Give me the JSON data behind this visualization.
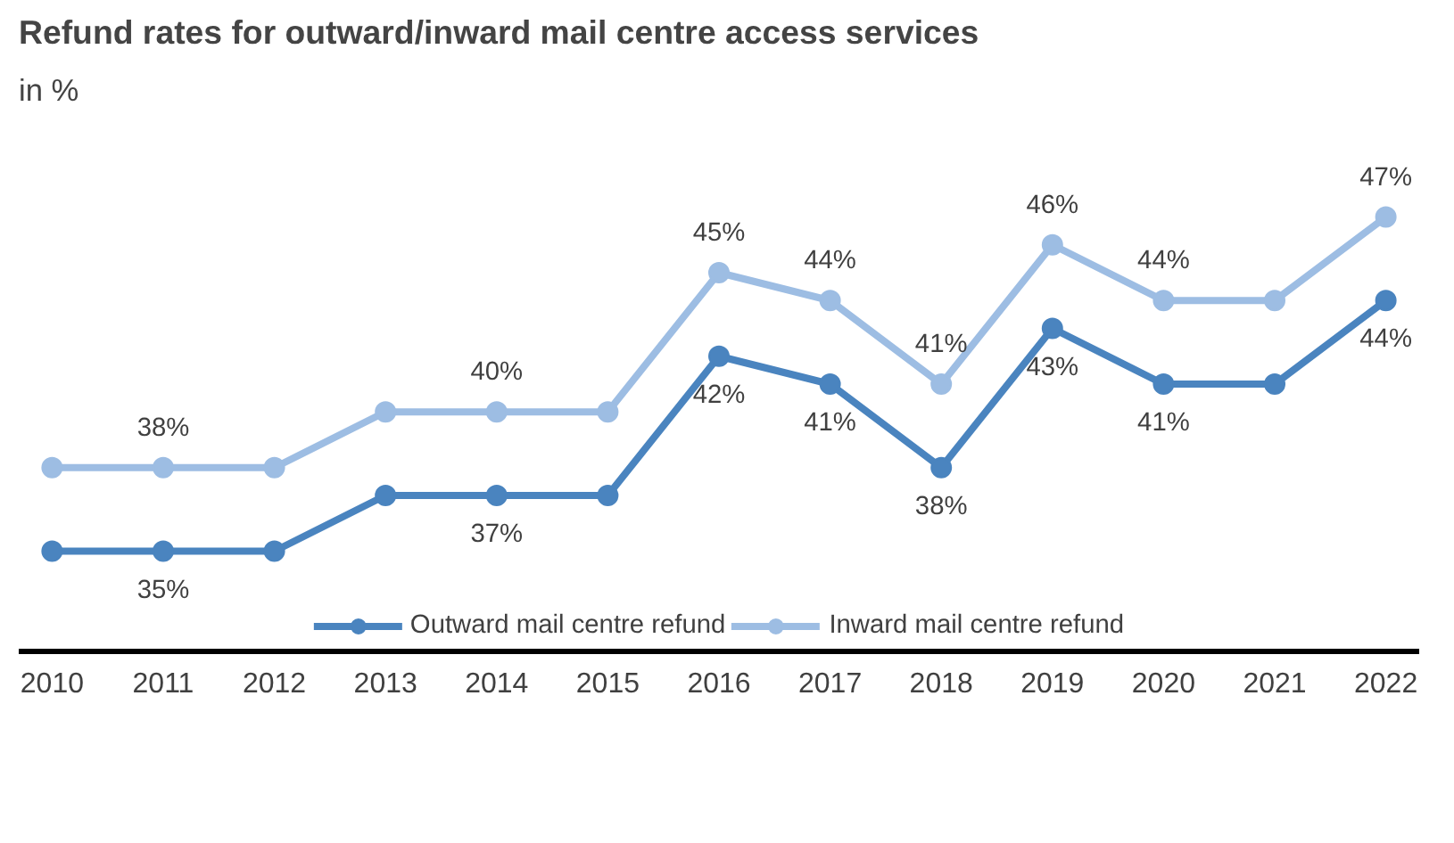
{
  "chart_data": {
    "type": "line",
    "title": "Refund rates for outward/inward mail centre access services",
    "subtitle": "in %",
    "categories": [
      "2010",
      "2011",
      "2012",
      "2013",
      "2014",
      "2015",
      "2016",
      "2017",
      "2018",
      "2019",
      "2020",
      "2021",
      "2022"
    ],
    "grid": false,
    "legend": "bottom",
    "marker": "circle",
    "line_style": "solid",
    "tick_labels": "x",
    "series": [
      {
        "name": "Outward mail centre refund",
        "color": "#4a84bf",
        "values": [
          35,
          35,
          35,
          37,
          37,
          37,
          42,
          41,
          38,
          43,
          41,
          41,
          44
        ],
        "value_labels": [
          null,
          "35%",
          null,
          null,
          "37%",
          null,
          "42%",
          "41%",
          "38%",
          "43%",
          "41%",
          null,
          "44%"
        ]
      },
      {
        "name": "Inward mail centre refund",
        "color": "#9dbde3",
        "values": [
          38,
          38,
          38,
          40,
          40,
          40,
          45,
          44,
          41,
          46,
          44,
          44,
          47
        ],
        "value_labels": [
          null,
          "38%",
          null,
          null,
          "40%",
          null,
          "45%",
          "44%",
          "41%",
          "46%",
          "44%",
          null,
          "47%"
        ]
      }
    ]
  }
}
